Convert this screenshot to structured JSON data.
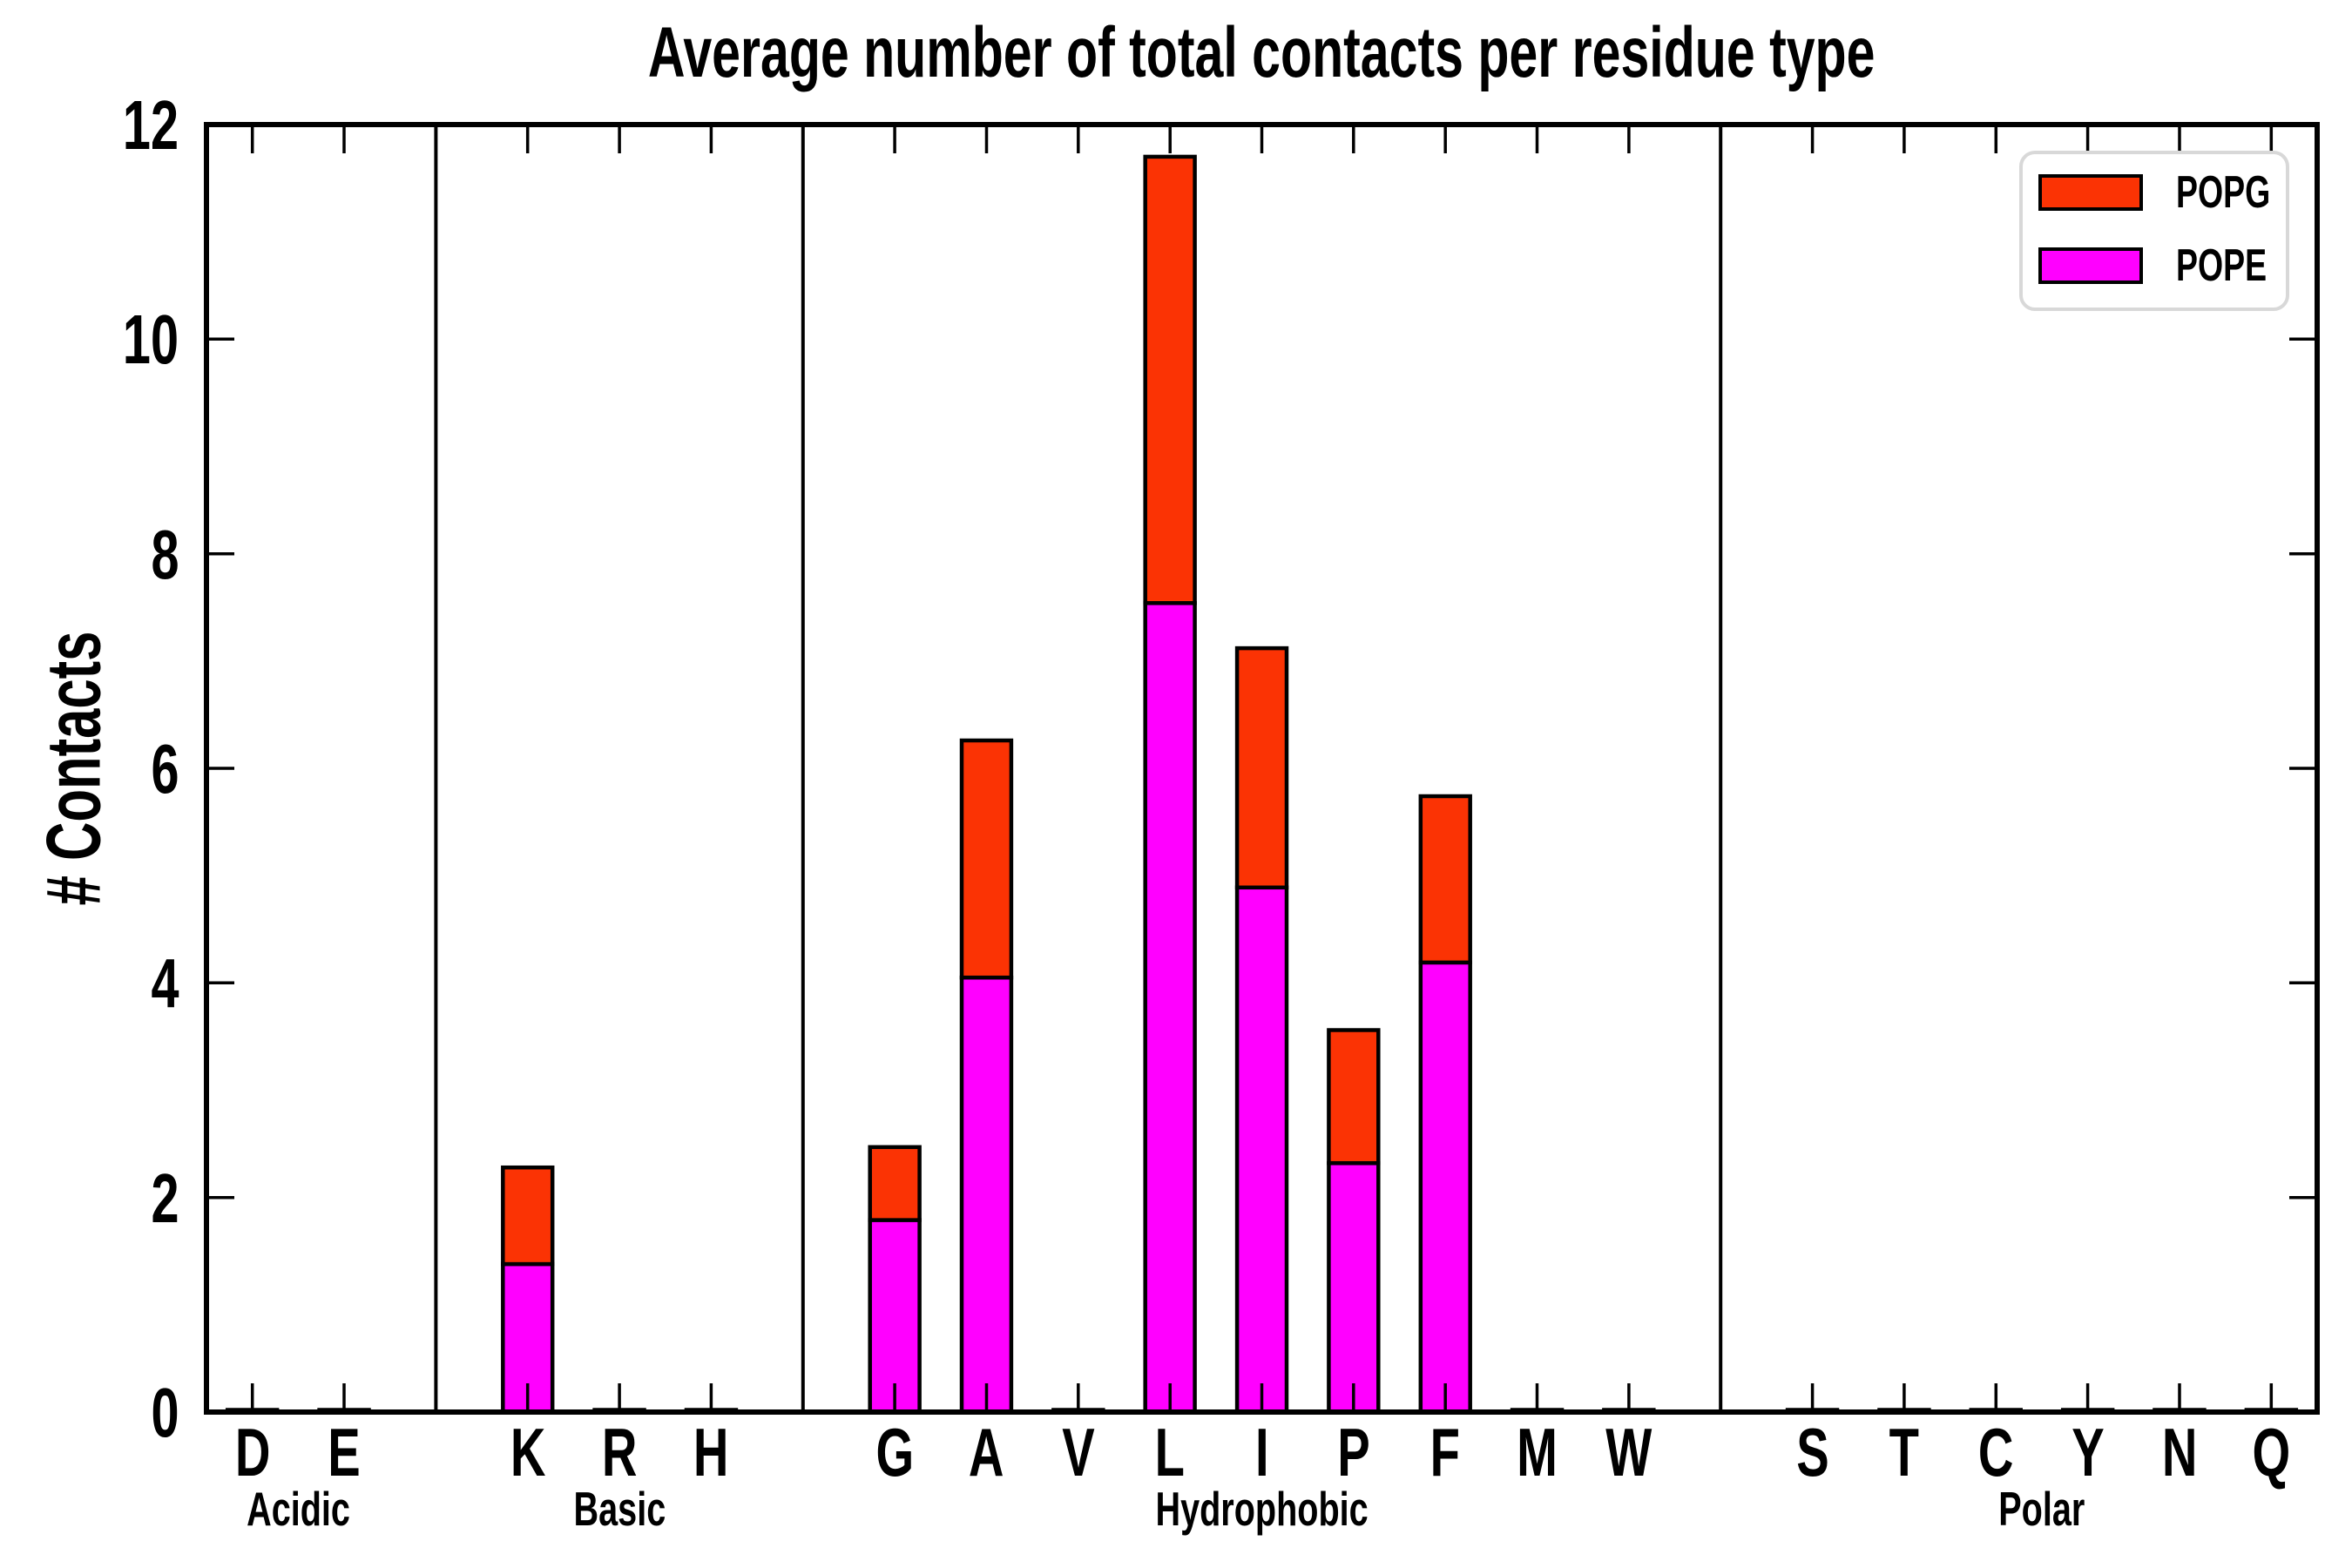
{
  "chart_data": {
    "type": "stacked_bar",
    "title": "Average number of total contacts per residue type",
    "ylabel": "# Contacts",
    "xlabel": "",
    "ylim": [
      0,
      12
    ],
    "yticks": [
      0,
      2,
      4,
      6,
      8,
      10,
      12
    ],
    "grid": false,
    "legend": {
      "position": "upper right",
      "entries": [
        "POPG",
        "POPE"
      ]
    },
    "colors": {
      "POPG": "#FB3304",
      "POPE": "#FF00FF"
    },
    "stack_order_bottom_to_top": [
      "POPE",
      "POPG"
    ],
    "groups": [
      {
        "label": "Acidic",
        "residues": [
          "D",
          "E"
        ]
      },
      {
        "label": "Basic",
        "residues": [
          "K",
          "R",
          "H"
        ]
      },
      {
        "label": "Hydrophobic",
        "residues": [
          "G",
          "A",
          "V",
          "L",
          "I",
          "P",
          "F",
          "M",
          "W"
        ]
      },
      {
        "label": "Polar",
        "residues": [
          "S",
          "T",
          "C",
          "Y",
          "N",
          "Q"
        ]
      }
    ],
    "values": {
      "POPE": {
        "D": 0.01,
        "E": 0.01,
        "K": 1.38,
        "R": 0.01,
        "H": 0.01,
        "G": 1.79,
        "A": 4.05,
        "V": 0.01,
        "L": 7.54,
        "I": 4.89,
        "P": 2.32,
        "F": 4.19,
        "M": 0.01,
        "W": 0.01,
        "S": 0.01,
        "T": 0.01,
        "C": 0.01,
        "Y": 0.01,
        "N": 0.01,
        "Q": 0.01
      },
      "POPG": {
        "D": 0.01,
        "E": 0.01,
        "K": 0.9,
        "R": 0.01,
        "H": 0.01,
        "G": 0.68,
        "A": 2.21,
        "V": 0.01,
        "L": 4.16,
        "I": 2.23,
        "P": 1.24,
        "F": 1.55,
        "M": 0.01,
        "W": 0.01,
        "S": 0.01,
        "T": 0.01,
        "C": 0.01,
        "Y": 0.01,
        "N": 0.01,
        "Q": 0.01
      }
    },
    "totals": {
      "K": 2.28,
      "G": 2.47,
      "A": 6.26,
      "L": 11.7,
      "I": 7.12,
      "P": 3.56,
      "F": 5.74
    }
  }
}
